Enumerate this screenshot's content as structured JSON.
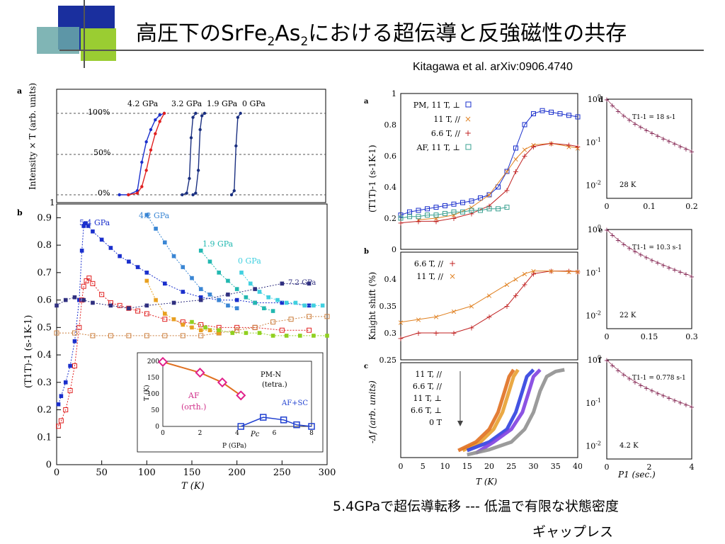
{
  "slide": {
    "title_parts": [
      "高圧下のSrFe",
      "2",
      "As",
      "2",
      "における超伝導と反強磁性の共存"
    ],
    "citation": "Kitagawa et al. arXiv:0906.4740",
    "caption_line1": "5.4GPaで超伝導転移 --- 低温で有限な状態密度",
    "caption_line2": "ギャップレス",
    "colors": {
      "deco_blue": "#1a2f9e",
      "deco_green": "#9acd32",
      "deco_teal": "#5f9ea0"
    }
  },
  "chart_data": [
    {
      "panel": "a",
      "type": "line",
      "ylabel": "Intensity × T (arb. units)",
      "ytick_labels": [
        "100%",
        "50%",
        "0%"
      ],
      "pressure_labels": [
        "4.2 GPa",
        "3.2 GPa",
        "1.9 GPa",
        "0 GPa"
      ],
      "series": [
        {
          "color": "#1a2fcc",
          "x": [
            70,
            80,
            90,
            95,
            100,
            105,
            110,
            115,
            120
          ],
          "y": [
            0,
            0,
            0.05,
            0.4,
            0.65,
            0.8,
            0.92,
            0.98,
            1.0
          ]
        },
        {
          "color": "#e02020",
          "x": [
            80,
            90,
            95,
            100,
            105,
            110,
            115,
            120
          ],
          "y": [
            0,
            0.02,
            0.1,
            0.3,
            0.55,
            0.75,
            0.9,
            1.0
          ]
        },
        {
          "color": "#1a2f80",
          "x": [
            140,
            145,
            148,
            150,
            152,
            155
          ],
          "y": [
            0,
            0.02,
            0.2,
            0.7,
            0.95,
            1.0
          ]
        },
        {
          "color": "#1a2f80",
          "x": [
            152,
            155,
            158,
            160,
            162,
            165
          ],
          "y": [
            0,
            0.02,
            0.3,
            0.8,
            0.97,
            1.0
          ]
        },
        {
          "color": "#1a2f80",
          "x": [
            195,
            198,
            200,
            202,
            205
          ],
          "y": [
            0,
            0.05,
            0.6,
            0.95,
            1.0
          ]
        }
      ]
    },
    {
      "panel": "b",
      "type": "line",
      "xlabel": "T (K)",
      "ylabel": "(T1T)-1 (s-1K-1)",
      "xlim": [
        0,
        300
      ],
      "ylim": [
        0,
        0.95
      ],
      "xticks": [
        0,
        50,
        100,
        150,
        200,
        250,
        300
      ],
      "yticks": [
        0,
        0.1,
        0.2,
        0.3,
        0.4,
        0.5,
        0.6,
        0.7,
        0.8,
        0.9
      ],
      "series": [
        {
          "name": "5.4 GPa",
          "color": "#1a2fcc",
          "x": [
            2,
            5,
            10,
            15,
            20,
            25,
            28,
            30,
            32,
            35,
            40,
            50,
            60,
            70,
            80,
            90,
            100,
            120,
            140,
            160,
            180,
            200,
            220,
            250,
            280
          ],
          "y": [
            0.22,
            0.25,
            0.3,
            0.36,
            0.45,
            0.6,
            0.78,
            0.87,
            0.88,
            0.87,
            0.85,
            0.82,
            0.79,
            0.76,
            0.74,
            0.72,
            0.7,
            0.66,
            0.63,
            0.61,
            0.6,
            0.6,
            0.59,
            0.59,
            0.58
          ]
        },
        {
          "name": "",
          "color": "#e02020",
          "x": [
            2,
            5,
            10,
            15,
            20,
            25,
            28,
            30,
            33,
            36,
            40,
            50,
            60,
            70,
            80,
            90,
            100,
            120,
            140,
            160,
            180,
            200,
            220,
            250,
            280
          ],
          "y": [
            0.14,
            0.16,
            0.2,
            0.27,
            0.36,
            0.5,
            0.6,
            0.65,
            0.67,
            0.68,
            0.66,
            0.62,
            0.59,
            0.58,
            0.57,
            0.56,
            0.55,
            0.53,
            0.52,
            0.51,
            0.5,
            0.5,
            0.5,
            0.49,
            0.49
          ]
        },
        {
          "name": "4.2 GPa",
          "color": "#3a86d4",
          "x": [
            100,
            110,
            120,
            130,
            140,
            150,
            160,
            170,
            180,
            190,
            200
          ],
          "y": [
            0.91,
            0.86,
            0.81,
            0.76,
            0.72,
            0.68,
            0.64,
            0.62,
            0.6,
            0.58,
            0.57
          ]
        },
        {
          "name": "1.9 GPa",
          "color": "#22b8b0",
          "x": [
            160,
            170,
            180,
            190,
            200,
            210,
            220,
            230,
            240
          ],
          "y": [
            0.78,
            0.74,
            0.7,
            0.67,
            0.64,
            0.61,
            0.59,
            0.57,
            0.56
          ]
        },
        {
          "name": "0 GPa",
          "color": "#40d0e0",
          "x": [
            205,
            215,
            225,
            235,
            245,
            255,
            265,
            275,
            285,
            295
          ],
          "y": [
            0.7,
            0.66,
            0.63,
            0.61,
            0.6,
            0.59,
            0.59,
            0.58,
            0.58,
            0.58
          ]
        },
        {
          "name": "7.2 GPa",
          "color": "#303080",
          "x": [
            0,
            10,
            20,
            30,
            40,
            60,
            80,
            100,
            130,
            160,
            190,
            220,
            250,
            280
          ],
          "y": [
            0.58,
            0.6,
            0.61,
            0.6,
            0.59,
            0.58,
            0.57,
            0.58,
            0.59,
            0.6,
            0.62,
            0.64,
            0.66,
            0.66
          ]
        },
        {
          "name": "",
          "color": "#cc8040",
          "x": [
            0,
            20,
            40,
            60,
            80,
            100,
            120,
            140,
            160,
            180,
            200,
            220,
            240,
            260,
            280,
            300
          ],
          "y": [
            0.48,
            0.48,
            0.47,
            0.47,
            0.47,
            0.47,
            0.47,
            0.47,
            0.47,
            0.48,
            0.49,
            0.5,
            0.52,
            0.53,
            0.54,
            0.54
          ]
        },
        {
          "name": "",
          "color": "#e8a020",
          "x": [
            100,
            110,
            120,
            130,
            140,
            150,
            160,
            170,
            180
          ],
          "y": [
            0.67,
            0.6,
            0.55,
            0.53,
            0.51,
            0.5,
            0.49,
            0.49,
            0.48
          ]
        },
        {
          "name": "",
          "color": "#90d020",
          "x": [
            150,
            165,
            180,
            195,
            210,
            225,
            240,
            255,
            270,
            285,
            300
          ],
          "y": [
            0.52,
            0.5,
            0.49,
            0.48,
            0.48,
            0.48,
            0.47,
            0.47,
            0.47,
            0.47,
            0.47
          ]
        }
      ],
      "inset": {
        "xlabel": "P (GPa)",
        "ylabel": "T (K)",
        "xticks": [
          0,
          2,
          4,
          6,
          8
        ],
        "yticks": [
          0,
          50,
          100,
          150,
          200
        ],
        "labels": [
          "PM-N",
          "(tetra.)",
          "AF",
          "(orth.)",
          "AF+SC",
          "Pc"
        ],
        "af_boundary": {
          "x": [
            0,
            2,
            3.2,
            4.2
          ],
          "y": [
            198,
            165,
            135,
            95
          ]
        },
        "sc_boundary": {
          "x": [
            4.2,
            5.4,
            6.5,
            7.2,
            8
          ],
          "y": [
            0,
            28,
            20,
            5,
            0
          ]
        }
      }
    },
    {
      "panel": "a (mid)",
      "type": "scatter",
      "ylabel": "(T1T)-1 (s-1K-1)",
      "xlim": [
        0,
        40
      ],
      "ylim": [
        0,
        1
      ],
      "yticks": [
        0,
        0.2,
        0.4,
        0.6,
        0.8,
        1
      ],
      "legend": [
        "PM, 11 T, ⊥",
        "11 T, //",
        "6.6 T, //",
        "AF, 11 T, ⊥"
      ],
      "series": [
        {
          "name": "PM, 11 T, ⊥",
          "color": "#1a2fcc",
          "x": [
            0,
            2,
            4,
            6,
            8,
            10,
            12,
            14,
            16,
            18,
            20,
            22,
            24,
            26,
            28,
            30,
            32,
            34,
            36,
            38,
            40
          ],
          "y": [
            0.22,
            0.24,
            0.25,
            0.26,
            0.27,
            0.28,
            0.29,
            0.3,
            0.31,
            0.33,
            0.35,
            0.4,
            0.5,
            0.65,
            0.8,
            0.87,
            0.89,
            0.88,
            0.87,
            0.86,
            0.85
          ]
        },
        {
          "name": "11 T, //",
          "color": "#e08020",
          "x": [
            4,
            8,
            12,
            16,
            20,
            24,
            26,
            28,
            30,
            34,
            38,
            40
          ],
          "y": [
            0.19,
            0.2,
            0.22,
            0.27,
            0.35,
            0.5,
            0.58,
            0.64,
            0.67,
            0.68,
            0.66,
            0.65
          ]
        },
        {
          "name": "6.6 T, //",
          "color": "#c02020",
          "x": [
            0,
            4,
            8,
            12,
            16,
            20,
            24,
            26,
            28,
            30,
            34,
            38,
            40
          ],
          "y": [
            0.17,
            0.18,
            0.18,
            0.2,
            0.23,
            0.28,
            0.38,
            0.5,
            0.6,
            0.66,
            0.68,
            0.67,
            0.66
          ]
        },
        {
          "name": "AF, 11 T, ⊥",
          "color": "#3aa090",
          "x": [
            0,
            2,
            4,
            6,
            8,
            10,
            12,
            14,
            16,
            18,
            20,
            22,
            24
          ],
          "y": [
            0.2,
            0.21,
            0.21,
            0.22,
            0.22,
            0.23,
            0.24,
            0.24,
            0.25,
            0.25,
            0.26,
            0.26,
            0.27
          ]
        }
      ]
    },
    {
      "panel": "b (mid)",
      "type": "scatter",
      "ylabel": "Knight shift (%)",
      "ylim": [
        0.25,
        0.45
      ],
      "yticks": [
        0.25,
        0.3,
        0.35,
        0.4
      ],
      "legend": [
        "6.6 T, //",
        "11 T, //"
      ],
      "series": [
        {
          "name": "6.6 T, //",
          "color": "#c02020",
          "x": [
            0,
            4,
            8,
            12,
            16,
            20,
            24,
            26,
            28,
            30,
            34,
            38,
            40
          ],
          "y": [
            0.29,
            0.3,
            0.3,
            0.3,
            0.31,
            0.33,
            0.35,
            0.37,
            0.39,
            0.41,
            0.415,
            0.415,
            0.414
          ]
        },
        {
          "name": "11 T, //",
          "color": "#e08020",
          "x": [
            0,
            4,
            8,
            12,
            16,
            20,
            24,
            26,
            28,
            30,
            34,
            38,
            40
          ],
          "y": [
            0.32,
            0.325,
            0.33,
            0.34,
            0.35,
            0.37,
            0.39,
            0.4,
            0.41,
            0.415,
            0.415,
            0.414,
            0.414
          ]
        }
      ]
    },
    {
      "panel": "c (mid)",
      "type": "line",
      "xlabel": "T (K)",
      "ylabel": "-Δf (arb. units)",
      "xlim": [
        0,
        40
      ],
      "xticks": [
        0,
        5,
        10,
        15,
        20,
        25,
        30,
        35,
        40
      ],
      "legend": [
        "11 T, //",
        "6.6 T, //",
        "11 T, ⊥",
        "6.6 T, ⊥",
        "0 T"
      ],
      "series": [
        {
          "name": "11 T, //",
          "color": "#e8a030",
          "x": [
            14,
            18,
            21,
            23,
            24.5,
            25.5,
            26.5
          ],
          "y": [
            0.05,
            0.15,
            0.3,
            0.5,
            0.75,
            0.92,
            1.0
          ]
        },
        {
          "name": "6.6 T, //",
          "color": "#e07020",
          "x": [
            13,
            17,
            20,
            22,
            23.5,
            24.5,
            25.5
          ],
          "y": [
            0.05,
            0.15,
            0.3,
            0.5,
            0.75,
            0.92,
            1.0
          ]
        },
        {
          "name": "11 T, ⊥",
          "color": "#3040e0",
          "x": [
            15,
            20,
            24,
            26,
            27.5,
            28.5,
            30
          ],
          "y": [
            0.05,
            0.15,
            0.3,
            0.5,
            0.75,
            0.92,
            1.0
          ]
        },
        {
          "name": "6.6 T, ⊥",
          "color": "#8040e0",
          "x": [
            17,
            21,
            25,
            27.5,
            29,
            30,
            31.5
          ],
          "y": [
            0.02,
            0.15,
            0.3,
            0.5,
            0.75,
            0.92,
            1.0
          ]
        },
        {
          "name": "0 T",
          "color": "#909090",
          "x": [
            15,
            20,
            25,
            28,
            30,
            31.5,
            33,
            35,
            37
          ],
          "y": [
            0.0,
            0.06,
            0.15,
            0.3,
            0.5,
            0.75,
            0.92,
            0.98,
            1.0
          ]
        }
      ]
    },
    {
      "panel": "d",
      "type": "line",
      "ylog": true,
      "ylim": [
        0.005,
        1
      ],
      "xlim": [
        0,
        0.2
      ],
      "xticks": [
        "0",
        "0.1",
        "0.2"
      ],
      "label_T": "28 K",
      "fit_label": "T1-1 = 18 s-1",
      "rate": 18
    },
    {
      "panel": "e",
      "type": "line",
      "ylog": true,
      "ylim": [
        0.005,
        1
      ],
      "xlim": [
        0,
        0.3
      ],
      "xticks": [
        "0",
        "0.15",
        "0.3"
      ],
      "label_T": "22 K",
      "fit_label": "T1-1 = 10.3 s-1",
      "rate": 10.3
    },
    {
      "panel": "f",
      "type": "line",
      "ylog": true,
      "ylim": [
        0.005,
        1
      ],
      "xlim": [
        0,
        4
      ],
      "xticks": [
        "0",
        "2",
        "4"
      ],
      "xlabel": "P1 (sec.)",
      "label_T": "4.2 K",
      "fit_label": "T1-1 = 0.778 s-1",
      "rate": 0.778
    }
  ]
}
